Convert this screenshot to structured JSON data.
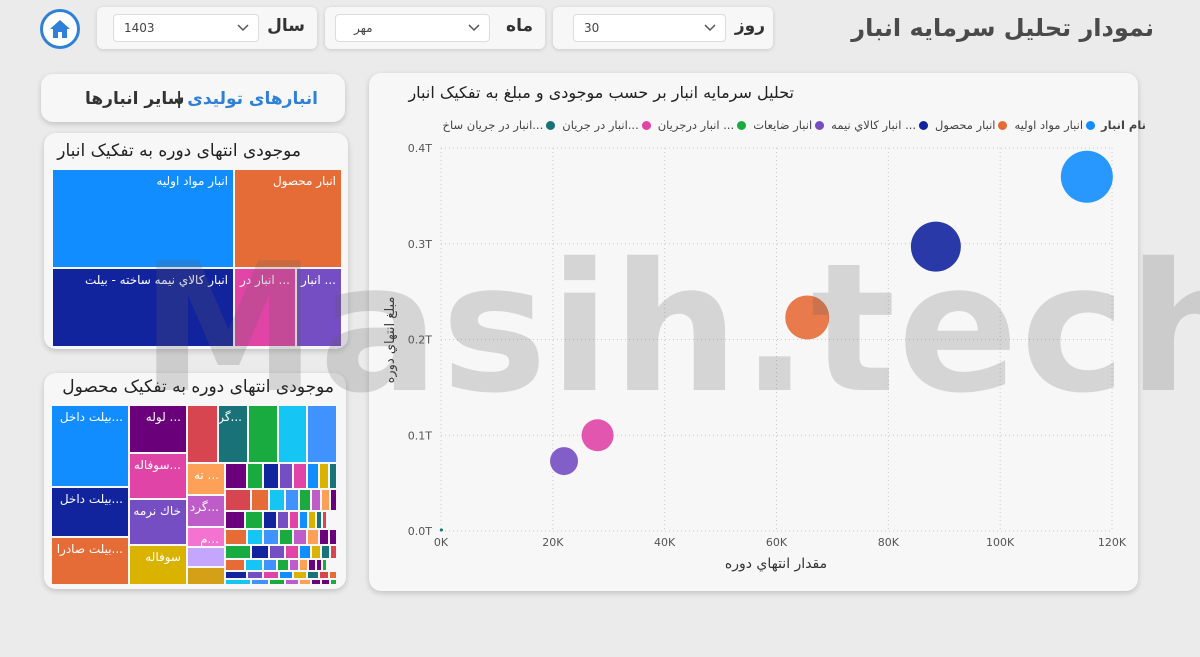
{
  "header": {
    "title": "نمودار تحلیل سرمایه انبار",
    "filters": {
      "year_label": "سال",
      "year_value": "1403",
      "month_label": "ماه",
      "month_value": "مهر",
      "day_label": "روز",
      "day_value": "30"
    }
  },
  "tabs": {
    "active": "انبارهای تولیدی",
    "separator": "|",
    "other": "سایر انبارها"
  },
  "treemap_warehouses": {
    "title": "موجودی انتهای دوره به تفکیک انبار",
    "cells": [
      {
        "label": "انبار مواد اولیه",
        "color": "#118dff"
      },
      {
        "label": "انبار محصول",
        "color": "#e66c37"
      },
      {
        "label": "انبار کالاي نیمه ساخته - بیلت",
        "color": "#12239e"
      },
      {
        "label": "... انبار در",
        "color": "#e044a7"
      },
      {
        "label": "... انبار",
        "color": "#744ec2"
      }
    ]
  },
  "treemap_products": {
    "title": "موجودی انتهای دوره به تفکیک محصول",
    "labels": [
      "...بیلت داخل",
      "... لوله",
      "...گر",
      "...سوفاله",
      "... ته",
      "...بیلت داخل",
      "خاك نرمه",
      "...گرد",
      "...م",
      "...بیلت صادرا",
      "سوفاله"
    ]
  },
  "chart_data": {
    "type": "scatter",
    "title": "تحلیل سرمایه انبار بر حسب موجودی و مبلغ به تفکیک انبار",
    "xlabel": "مقدار انتهاي دوره",
    "ylabel": "مبلغ انتهاي دوره",
    "xlim": [
      0,
      120000
    ],
    "ylim": [
      0,
      0.4
    ],
    "x_ticks": [
      "0K",
      "20K",
      "40K",
      "60K",
      "80K",
      "100K",
      "120K"
    ],
    "y_ticks": [
      "0.0T",
      "0.1T",
      "0.2T",
      "0.3T",
      "0.4T"
    ],
    "legend_title": "نام انبار",
    "legend_position": "top",
    "grid": true,
    "series": [
      {
        "name": "انبار مواد اولیه",
        "color": "#118dff",
        "x": 115500,
        "y": 0.37,
        "size": 26
      },
      {
        "name": "انبار محصول",
        "color": "#e66c37",
        "x": 65500,
        "y": 0.223,
        "size": 22
      },
      {
        "name": "... انبار کالاي نیمه",
        "color": "#12239e",
        "x": 88500,
        "y": 0.297,
        "size": 25
      },
      {
        "name": "انبار ضایعات",
        "color": "#744ec2",
        "x": 22000,
        "y": 0.073,
        "size": 14
      },
      {
        "name": "... انبار درجریان",
        "color": "#1aab40",
        "x": 100,
        "y": 0.001,
        "size": 1
      },
      {
        "name": "...انبار در جریان",
        "color": "#e044a7",
        "x": 28000,
        "y": 0.1,
        "size": 16
      },
      {
        "name": "...انبار در جریان ساخ",
        "color": "#197278",
        "x": 50,
        "y": 0.001,
        "size": 1
      }
    ]
  },
  "watermark": "Masih.tech"
}
